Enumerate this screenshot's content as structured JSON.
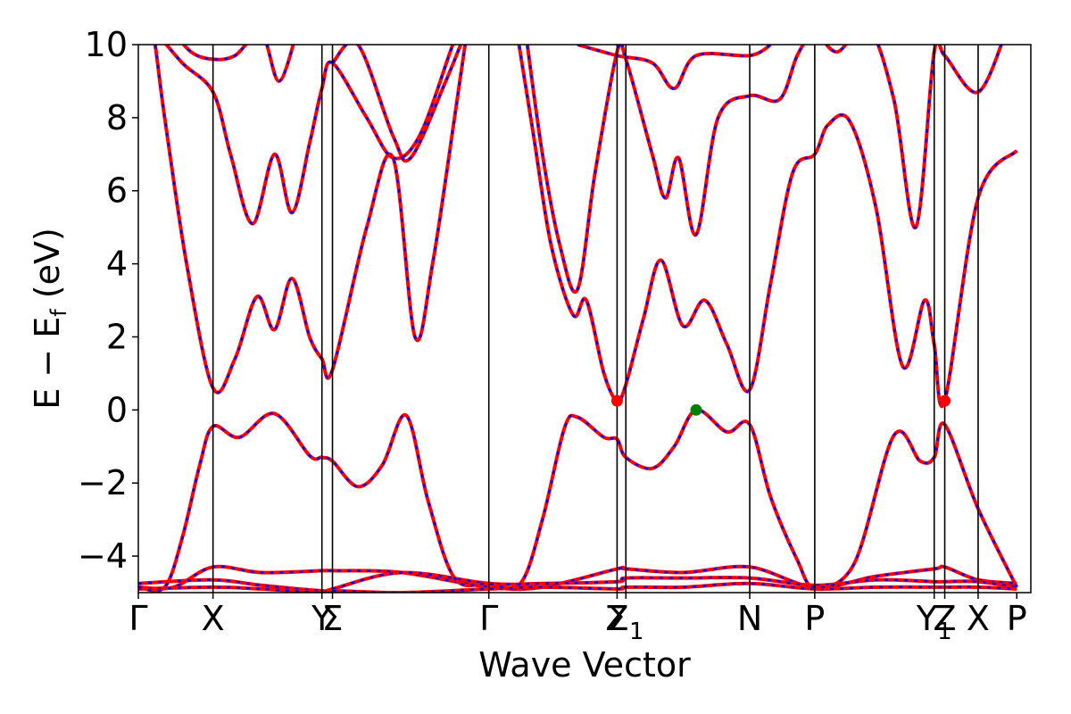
{
  "chart_data": {
    "type": "line",
    "xlabel": "Wave Vector",
    "ylabel_main": "E − E",
    "ylabel_sub": "f",
    "ylabel_unit": " (eV)",
    "ylim": [
      -5,
      10
    ],
    "xlim": [
      0,
      10.16
    ],
    "y_ticks": [
      {
        "value": -4,
        "label": "−4"
      },
      {
        "value": -2,
        "label": "−2"
      },
      {
        "value": 0,
        "label": "0"
      },
      {
        "value": 2,
        "label": "2"
      },
      {
        "value": 4,
        "label": "4"
      },
      {
        "value": 6,
        "label": "6"
      },
      {
        "value": 8,
        "label": "8"
      },
      {
        "value": 10,
        "label": "10"
      }
    ],
    "k_points": [
      {
        "x": 0.0,
        "label": "Γ",
        "sub": ""
      },
      {
        "x": 0.85,
        "label": "X",
        "sub": ""
      },
      {
        "x": 2.09,
        "label": "Y",
        "sub": ""
      },
      {
        "x": 2.21,
        "label": "Σ",
        "sub": ""
      },
      {
        "x": 3.99,
        "label": "Γ",
        "sub": ""
      },
      {
        "x": 5.45,
        "label": "Z",
        "sub": ""
      },
      {
        "x": 5.55,
        "label": "Σ",
        "sub": "1"
      },
      {
        "x": 6.96,
        "label": "N",
        "sub": ""
      },
      {
        "x": 7.7,
        "label": "P",
        "sub": ""
      },
      {
        "x": 9.06,
        "label": "Y",
        "sub": "1"
      },
      {
        "x": 9.18,
        "label": "Z",
        "sub": ""
      },
      {
        "x": 9.56,
        "label": "X",
        "sub": ""
      },
      {
        "x": 10.0,
        "label": "P",
        "sub": ""
      }
    ],
    "series_colors": {
      "line": "#ff0000",
      "dash": "#0000ff"
    },
    "points": [
      {
        "x": 5.45,
        "y": 0.25,
        "color": "#ff0000",
        "kind": "conduction band minimum"
      },
      {
        "x": 9.18,
        "y": 0.25,
        "color": "#ff0000",
        "kind": "conduction band minimum"
      },
      {
        "x": 6.35,
        "y": 0.0,
        "color": "#008000",
        "kind": "valence band maximum"
      }
    ],
    "bands": [
      [
        [
          0,
          -4.85
        ],
        [
          0.4,
          -4.85
        ],
        [
          0.85,
          -4.3
        ],
        [
          1.4,
          -4.45
        ],
        [
          2.09,
          -4.4
        ],
        [
          2.21,
          -4.4
        ],
        [
          3.0,
          -4.45
        ],
        [
          3.99,
          -4.85
        ],
        [
          4.6,
          -4.85
        ],
        [
          5.45,
          -4.35
        ],
        [
          5.55,
          -4.35
        ],
        [
          6.2,
          -4.45
        ],
        [
          6.96,
          -4.3
        ],
        [
          7.7,
          -4.85
        ],
        [
          8.4,
          -4.55
        ],
        [
          9.06,
          -4.35
        ],
        [
          9.18,
          -4.3
        ],
        [
          9.56,
          -4.65
        ],
        [
          10.0,
          -4.75
        ]
      ],
      [
        [
          0,
          -4.75
        ],
        [
          0.85,
          -4.65
        ],
        [
          1.4,
          -4.8
        ],
        [
          2.09,
          -4.95
        ],
        [
          2.21,
          -4.9
        ],
        [
          3.0,
          -4.45
        ],
        [
          3.99,
          -4.75
        ],
        [
          4.6,
          -4.75
        ],
        [
          5.45,
          -4.7
        ],
        [
          5.55,
          -4.6
        ],
        [
          6.2,
          -4.6
        ],
        [
          6.96,
          -4.6
        ],
        [
          7.7,
          -4.8
        ],
        [
          8.4,
          -4.65
        ],
        [
          9.06,
          -4.7
        ],
        [
          9.18,
          -4.7
        ],
        [
          9.56,
          -4.7
        ],
        [
          10.0,
          -4.85
        ]
      ],
      [
        [
          0,
          -4.9
        ],
        [
          0.85,
          -4.85
        ],
        [
          1.4,
          -4.9
        ],
        [
          2.09,
          -5.0
        ],
        [
          2.21,
          -4.95
        ],
        [
          3.0,
          -5.0
        ],
        [
          3.99,
          -4.9
        ],
        [
          4.6,
          -4.85
        ],
        [
          5.45,
          -4.9
        ],
        [
          5.55,
          -4.85
        ],
        [
          6.2,
          -4.85
        ],
        [
          6.96,
          -4.75
        ],
        [
          7.7,
          -4.9
        ],
        [
          8.4,
          -4.85
        ],
        [
          9.06,
          -4.85
        ],
        [
          9.18,
          -4.85
        ],
        [
          9.56,
          -4.85
        ],
        [
          10.0,
          -4.9
        ]
      ],
      [
        [
          0,
          -4.85
        ],
        [
          0.3,
          -4.85
        ],
        [
          0.5,
          -3.5
        ],
        [
          0.7,
          -1.5
        ],
        [
          0.85,
          -0.45
        ],
        [
          1.15,
          -0.75
        ],
        [
          1.55,
          -0.1
        ],
        [
          1.95,
          -1.25
        ],
        [
          2.09,
          -1.3
        ],
        [
          2.21,
          -1.4
        ],
        [
          2.5,
          -2.1
        ],
        [
          2.78,
          -1.5
        ],
        [
          3.05,
          -0.15
        ],
        [
          3.3,
          -2.5
        ],
        [
          3.6,
          -4.6
        ],
        [
          3.99,
          -4.75
        ],
        [
          4.35,
          -4.75
        ],
        [
          4.6,
          -3.0
        ],
        [
          4.85,
          -0.5
        ],
        [
          5.0,
          -0.2
        ],
        [
          5.3,
          -0.75
        ],
        [
          5.45,
          -0.8
        ],
        [
          5.55,
          -1.3
        ],
        [
          5.85,
          -1.6
        ],
        [
          6.1,
          -1.0
        ],
        [
          6.35,
          0.0
        ],
        [
          6.7,
          -0.6
        ],
        [
          6.96,
          -0.4
        ],
        [
          7.2,
          -2.4
        ],
        [
          7.5,
          -4.1
        ],
        [
          7.7,
          -4.85
        ],
        [
          8.15,
          -4.2
        ],
        [
          8.6,
          -0.7
        ],
        [
          8.9,
          -1.4
        ],
        [
          9.06,
          -1.3
        ],
        [
          9.18,
          -0.4
        ],
        [
          9.56,
          -2.7
        ],
        [
          10.0,
          -4.85
        ]
      ],
      [
        [
          0,
          10.5
        ],
        [
          0.15,
          10.5
        ],
        [
          0.3,
          8.0
        ],
        [
          0.55,
          4.0
        ],
        [
          0.85,
          0.6
        ],
        [
          1.1,
          1.4
        ],
        [
          1.35,
          3.1
        ],
        [
          1.55,
          2.2
        ],
        [
          1.75,
          3.6
        ],
        [
          1.95,
          2.0
        ],
        [
          2.09,
          1.4
        ],
        [
          2.21,
          1.1
        ],
        [
          2.6,
          5.0
        ],
        [
          2.9,
          6.9
        ],
        [
          3.15,
          2.0
        ],
        [
          3.35,
          4.0
        ],
        [
          3.6,
          8.0
        ],
        [
          3.75,
          10.5
        ]
      ],
      [
        [
          0.15,
          10.5
        ],
        [
          0.5,
          9.5
        ],
        [
          0.85,
          8.7
        ],
        [
          1.05,
          7.0
        ],
        [
          1.3,
          5.1
        ],
        [
          1.55,
          7.0
        ],
        [
          1.75,
          5.4
        ],
        [
          1.95,
          7.3
        ],
        [
          2.09,
          8.8
        ],
        [
          2.21,
          9.5
        ],
        [
          2.6,
          8.0
        ],
        [
          2.9,
          6.9
        ],
        [
          3.2,
          7.5
        ],
        [
          3.55,
          9.8
        ],
        [
          3.65,
          10.5
        ]
      ],
      [
        [
          0.35,
          10.5
        ],
        [
          0.6,
          9.8
        ],
        [
          0.85,
          9.6
        ],
        [
          1.1,
          9.7
        ],
        [
          1.4,
          10.3
        ],
        [
          1.6,
          9.0
        ],
        [
          1.8,
          10.3
        ]
      ],
      [
        [
          2.21,
          9.5
        ],
        [
          2.5,
          10.0
        ],
        [
          2.9,
          7.5
        ],
        [
          3.1,
          6.9
        ],
        [
          3.5,
          9.0
        ],
        [
          3.75,
          10.5
        ]
      ],
      [
        [
          4.4,
          10.5
        ],
        [
          4.6,
          7.0
        ],
        [
          4.8,
          4.5
        ],
        [
          5.0,
          3.3
        ],
        [
          5.2,
          6.5
        ],
        [
          5.45,
          9.8
        ],
        [
          5.55,
          9.6
        ],
        [
          5.85,
          7.0
        ],
        [
          6.0,
          5.8
        ],
        [
          6.15,
          6.9
        ],
        [
          6.35,
          4.8
        ],
        [
          6.6,
          8.0
        ],
        [
          6.96,
          8.6
        ],
        [
          7.3,
          8.5
        ],
        [
          7.5,
          9.7
        ],
        [
          7.7,
          10.5
        ]
      ],
      [
        [
          4.3,
          10.5
        ],
        [
          4.5,
          7.5
        ],
        [
          4.7,
          4.5
        ],
        [
          4.95,
          2.6
        ],
        [
          5.1,
          3.0
        ],
        [
          5.3,
          1.0
        ],
        [
          5.45,
          0.25
        ],
        [
          5.55,
          0.7
        ],
        [
          5.75,
          2.5
        ],
        [
          5.95,
          4.1
        ],
        [
          6.2,
          2.3
        ],
        [
          6.45,
          3.0
        ],
        [
          6.7,
          1.8
        ],
        [
          6.96,
          0.55
        ],
        [
          7.2,
          3.5
        ],
        [
          7.45,
          6.5
        ],
        [
          7.7,
          7.0
        ],
        [
          7.85,
          7.8
        ],
        [
          8.1,
          7.9
        ],
        [
          8.4,
          5.5
        ],
        [
          8.7,
          1.2
        ],
        [
          8.95,
          3.0
        ],
        [
          9.06,
          1.8
        ],
        [
          9.18,
          0.25
        ],
        [
          9.56,
          5.8
        ],
        [
          10.0,
          7.1
        ]
      ],
      [
        [
          5.0,
          10.0
        ],
        [
          5.45,
          9.7
        ],
        [
          5.85,
          9.5
        ],
        [
          6.1,
          8.8
        ],
        [
          6.35,
          9.7
        ],
        [
          6.96,
          9.7
        ],
        [
          7.2,
          10.0
        ]
      ],
      [
        [
          7.7,
          10.5
        ],
        [
          7.95,
          9.8
        ],
        [
          8.3,
          10.5
        ],
        [
          8.6,
          8.5
        ],
        [
          8.85,
          5.0
        ],
        [
          9.06,
          9.8
        ],
        [
          9.18,
          9.7
        ],
        [
          9.56,
          8.7
        ],
        [
          9.9,
          10.5
        ]
      ]
    ]
  }
}
